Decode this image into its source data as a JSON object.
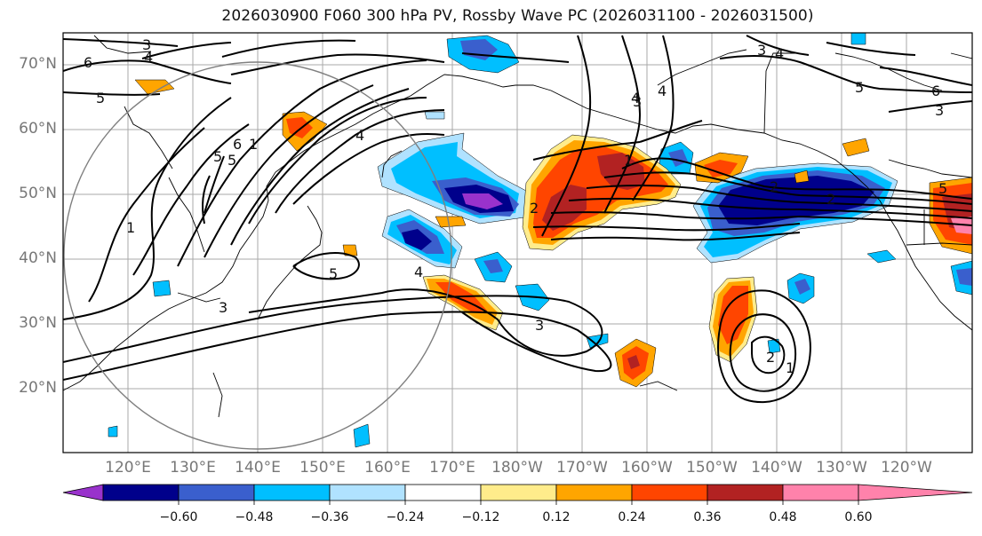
{
  "title": "2026030900 F060 300 hPa PV, Rossby Wave PC (2026031100 - 2026031500)",
  "lat_ticks": [
    "70°N",
    "60°N",
    "50°N",
    "40°N",
    "30°N",
    "20°N"
  ],
  "lon_ticks": [
    "120°E",
    "130°E",
    "140°E",
    "150°E",
    "160°E",
    "170°E",
    "180°W",
    "170°W",
    "160°W",
    "150°W",
    "140°W",
    "130°W",
    "120°W"
  ],
  "colorbar": {
    "ticks": [
      "−0.60",
      "−0.48",
      "−0.36",
      "−0.24",
      "−0.12",
      "0.12",
      "0.24",
      "0.36",
      "0.48",
      "0.60"
    ],
    "colors": [
      "#9932cc",
      "#00008b",
      "#3a5fcd",
      "#00bfff",
      "#b0e2ff",
      "#ffffff",
      "#ffec8b",
      "#ffa500",
      "#ff4500",
      "#b22222",
      "#ff82ab"
    ]
  },
  "contour_labels": [
    "3",
    "4",
    "6",
    "5",
    "5",
    "6",
    "5",
    "3",
    "4",
    "4",
    "3",
    "5",
    "4",
    "3",
    "6",
    "2",
    "1",
    "5",
    "4",
    "3",
    "2",
    "1",
    "5",
    "4",
    "2",
    "1",
    "3",
    "2",
    "1"
  ]
}
